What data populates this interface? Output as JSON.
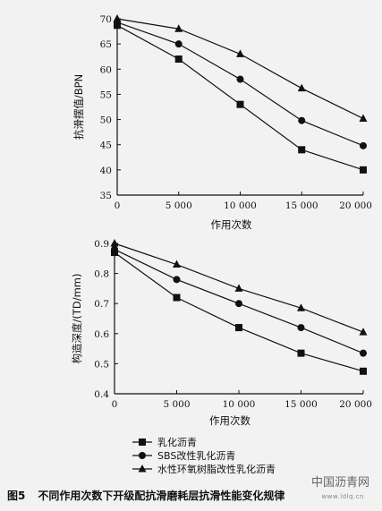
{
  "caption": {
    "fig_no": "图5",
    "text": "不同作用次数下开级配抗滑磨耗层抗滑性能变化规律"
  },
  "watermark": {
    "text": "中国沥青网",
    "sub": "www.ldlq.cn",
    "color": "#888888"
  },
  "legend": {
    "items": [
      "乳化沥青",
      "SBS改性乳化沥青",
      "水性环氧树脂改性乳化沥青"
    ]
  },
  "chart_data": [
    {
      "type": "line",
      "xlabel": "作用次数",
      "ylabel": "抗滑摆值/BPN",
      "x": [
        0,
        5000,
        10000,
        15000,
        20000
      ],
      "xticks": [
        "0",
        "5 000",
        "10 000",
        "15 000",
        "20 000"
      ],
      "xlim": [
        0,
        20000
      ],
      "ylim": [
        35,
        70
      ],
      "yticks": [
        "35",
        "40",
        "45",
        "50",
        "55",
        "60",
        "65",
        "70"
      ],
      "grid": false,
      "series": [
        {
          "name": "乳化沥青",
          "marker": "square",
          "values": [
            68.7,
            62,
            53,
            44,
            40
          ]
        },
        {
          "name": "SBS改性乳化沥青",
          "marker": "circle",
          "values": [
            69.3,
            65,
            58,
            49.8,
            44.8
          ]
        },
        {
          "name": "水性环氧树脂改性乳化沥青",
          "marker": "triangle",
          "values": [
            70,
            68,
            63,
            56.2,
            50.2
          ]
        }
      ]
    },
    {
      "type": "line",
      "xlabel": "作用次数",
      "ylabel": "构造深度/(TD/mm)",
      "x": [
        0,
        5000,
        10000,
        15000,
        20000
      ],
      "xticks": [
        "0",
        "5 000",
        "10 000",
        "15 000",
        "20 000"
      ],
      "xlim": [
        0,
        20000
      ],
      "ylim": [
        0.4,
        0.9
      ],
      "yticks": [
        "0.4",
        "0.5",
        "0.6",
        "0.7",
        "0.8",
        "0.9"
      ],
      "grid": false,
      "series": [
        {
          "name": "乳化沥青",
          "marker": "square",
          "values": [
            0.87,
            0.72,
            0.62,
            0.535,
            0.475
          ]
        },
        {
          "name": "SBS改性乳化沥青",
          "marker": "circle",
          "values": [
            0.88,
            0.78,
            0.7,
            0.62,
            0.535
          ]
        },
        {
          "name": "水性环氧树脂改性乳化沥青",
          "marker": "triangle",
          "values": [
            0.9,
            0.83,
            0.75,
            0.685,
            0.605
          ]
        }
      ]
    }
  ]
}
